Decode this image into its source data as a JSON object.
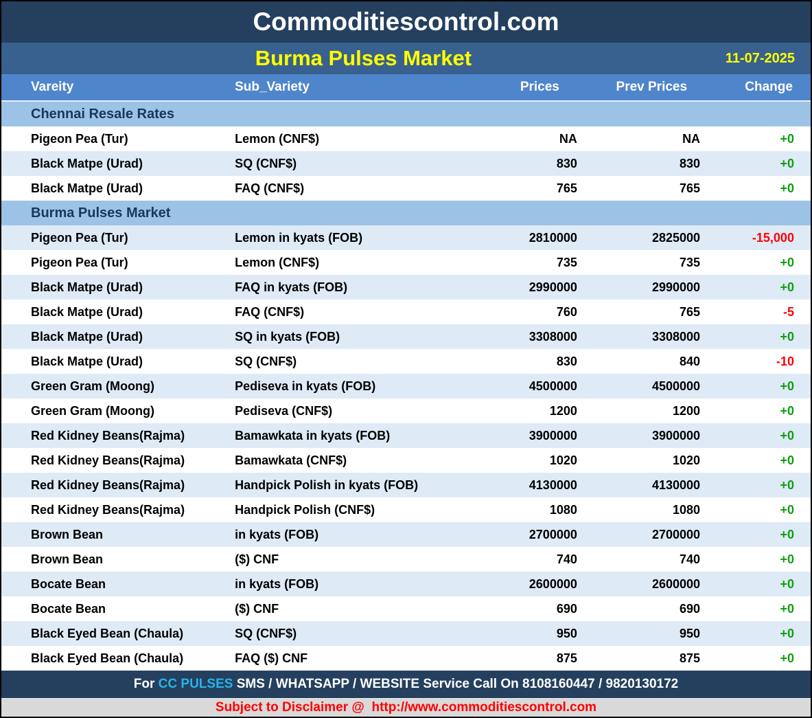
{
  "header": {
    "site_title": "Commoditiescontrol.com",
    "report_title": "Burma Pulses Market",
    "date": "11-07-2025"
  },
  "table": {
    "columns": [
      "Vareity",
      "Sub_Variety",
      "Prices",
      "Prev Prices",
      "Change"
    ],
    "rows": [
      {
        "type": "section",
        "label": "Chennai Resale Rates"
      },
      {
        "type": "data",
        "shade": "white",
        "variety": "Pigeon Pea (Tur)",
        "sub_variety": "Lemon (CNF$)",
        "price": "NA",
        "prev_price": "NA",
        "change": "+0"
      },
      {
        "type": "data",
        "shade": "light",
        "variety": "Black Matpe (Urad)",
        "sub_variety": "SQ (CNF$)",
        "price": "830",
        "prev_price": "830",
        "change": "+0"
      },
      {
        "type": "data",
        "shade": "white",
        "variety": "Black Matpe (Urad)",
        "sub_variety": "FAQ (CNF$)",
        "price": "765",
        "prev_price": "765",
        "change": "+0"
      },
      {
        "type": "section",
        "label": "Burma Pulses Market"
      },
      {
        "type": "data",
        "shade": "light",
        "variety": "Pigeon Pea (Tur)",
        "sub_variety": "Lemon in kyats (FOB)",
        "price": "2810000",
        "prev_price": "2825000",
        "change": "-15,000"
      },
      {
        "type": "data",
        "shade": "white",
        "variety": "Pigeon Pea (Tur)",
        "sub_variety": "Lemon (CNF$)",
        "price": "735",
        "prev_price": "735",
        "change": "+0"
      },
      {
        "type": "data",
        "shade": "light",
        "variety": "Black Matpe (Urad)",
        "sub_variety": "FAQ in kyats (FOB)",
        "price": "2990000",
        "prev_price": "2990000",
        "change": "+0"
      },
      {
        "type": "data",
        "shade": "white",
        "variety": "Black Matpe (Urad)",
        "sub_variety": "FAQ (CNF$)",
        "price": "760",
        "prev_price": "765",
        "change": "-5"
      },
      {
        "type": "data",
        "shade": "light",
        "variety": "Black Matpe (Urad)",
        "sub_variety": "SQ in kyats (FOB)",
        "price": "3308000",
        "prev_price": "3308000",
        "change": "+0"
      },
      {
        "type": "data",
        "shade": "white",
        "variety": "Black Matpe (Urad)",
        "sub_variety": "SQ (CNF$)",
        "price": "830",
        "prev_price": "840",
        "change": "-10"
      },
      {
        "type": "data",
        "shade": "light",
        "variety": "Green Gram (Moong)",
        "sub_variety": "Pediseva in kyats (FOB)",
        "price": "4500000",
        "prev_price": "4500000",
        "change": "+0"
      },
      {
        "type": "data",
        "shade": "white",
        "variety": "Green Gram (Moong)",
        "sub_variety": "Pediseva (CNF$)",
        "price": "1200",
        "prev_price": "1200",
        "change": "+0"
      },
      {
        "type": "data",
        "shade": "light",
        "variety": "Red Kidney Beans(Rajma)",
        "sub_variety": "Bamawkata in kyats (FOB)",
        "price": "3900000",
        "prev_price": "3900000",
        "change": "+0"
      },
      {
        "type": "data",
        "shade": "white",
        "variety": "Red Kidney Beans(Rajma)",
        "sub_variety": "Bamawkata (CNF$)",
        "price": "1020",
        "prev_price": "1020",
        "change": "+0"
      },
      {
        "type": "data",
        "shade": "light",
        "variety": "Red Kidney Beans(Rajma)",
        "sub_variety": "Handpick Polish in kyats (FOB)",
        "price": "4130000",
        "prev_price": "4130000",
        "change": "+0"
      },
      {
        "type": "data",
        "shade": "white",
        "variety": "Red Kidney Beans(Rajma)",
        "sub_variety": "Handpick Polish (CNF$)",
        "price": "1080",
        "prev_price": "1080",
        "change": "+0"
      },
      {
        "type": "data",
        "shade": "light",
        "variety": "Brown Bean",
        "sub_variety": "in kyats (FOB)",
        "price": "2700000",
        "prev_price": "2700000",
        "change": "+0"
      },
      {
        "type": "data",
        "shade": "white",
        "variety": "Brown Bean",
        "sub_variety": "($) CNF",
        "price": "740",
        "prev_price": "740",
        "change": "+0"
      },
      {
        "type": "data",
        "shade": "light",
        "variety": "Bocate Bean",
        "sub_variety": "in kyats (FOB)",
        "price": "2600000",
        "prev_price": "2600000",
        "change": "+0"
      },
      {
        "type": "data",
        "shade": "white",
        "variety": "Bocate Bean",
        "sub_variety": "($) CNF",
        "price": "690",
        "prev_price": "690",
        "change": "+0"
      },
      {
        "type": "data",
        "shade": "light",
        "variety": "Black Eyed Bean (Chaula)",
        "sub_variety": "SQ (CNF$)",
        "price": "950",
        "prev_price": "950",
        "change": "+0"
      },
      {
        "type": "data",
        "shade": "white",
        "variety": "Black Eyed Bean (Chaula)",
        "sub_variety": "FAQ ($) CNF",
        "price": "875",
        "prev_price": "875",
        "change": "+0"
      }
    ]
  },
  "footer": {
    "service_prefix": "For ",
    "service_brand": "CC PULSES",
    "service_suffix": " SMS / WHATSAPP / WEBSITE Service Call On 8108160447 / 9820130172",
    "disclaimer": "Subject to Disclaimer @  http://www.commoditiescontrol.com"
  },
  "colors": {
    "title_band": "#24405e",
    "subtitle_band": "#38618f",
    "header_band": "#4f85ca",
    "section_row": "#9cc3e6",
    "row_light": "#deeaf6",
    "row_white": "#ffffff",
    "section_text": "#17375d",
    "accent_yellow": "#ffff00",
    "change_positive": "#0f9d0f",
    "change_negative": "#ff0000",
    "brand_cyan": "#29b3ea",
    "disclaimer_band": "#d9d9d9",
    "disclaimer_text": "#ff0000"
  }
}
